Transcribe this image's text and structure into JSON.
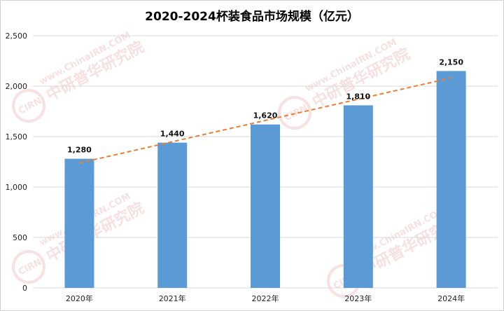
{
  "chart_data": {
    "type": "bar",
    "title": "2020-2024杯装食品市场规模（亿元）",
    "categories": [
      "2020年",
      "2021年",
      "2022年",
      "2023年",
      "2024年"
    ],
    "values": [
      1280,
      1440,
      1620,
      1810,
      2150
    ],
    "data_labels": [
      "1,280",
      "1,440",
      "1,620",
      "1,810",
      "2,150"
    ],
    "y_ticks": [
      0,
      500,
      1000,
      1500,
      2000,
      2500
    ],
    "y_tick_labels": [
      "0",
      "500",
      "1,000",
      "1,500",
      "2,000",
      "2,500"
    ],
    "ylim": [
      0,
      2500
    ],
    "grid": true,
    "trendline": "linear, dashed",
    "xlabel": "",
    "ylabel": "",
    "colors": {
      "bar": "#5b9bd5",
      "trendline": "#ed7d31",
      "grid": "#d9d9d9"
    }
  },
  "watermark": {
    "url_text": "www.ChinaIRN.COM",
    "cn_text": "中研普华研究院",
    "logo_text": "CIRN"
  }
}
